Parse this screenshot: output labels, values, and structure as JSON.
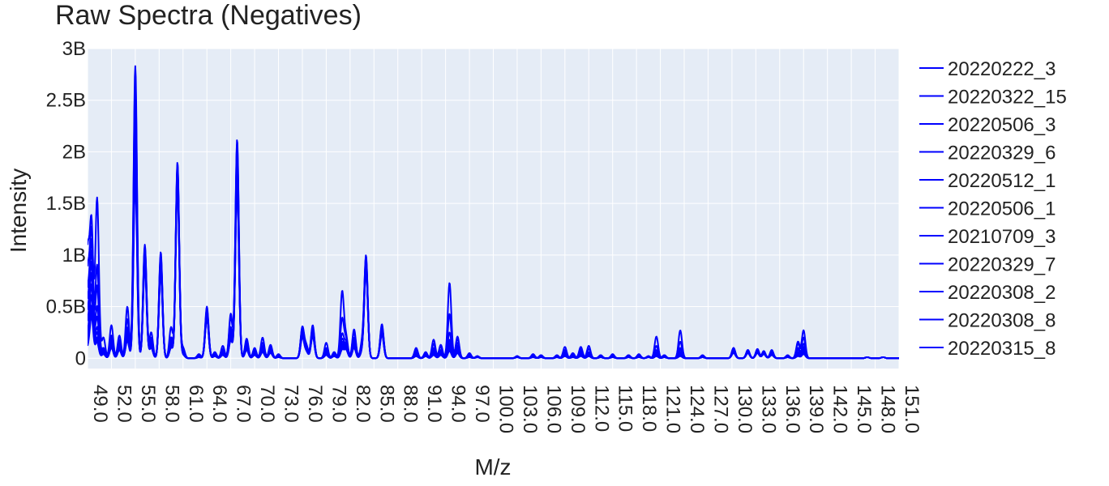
{
  "chart_data": {
    "type": "line",
    "title": "Raw Spectra (Negatives)",
    "xlabel": "M/z",
    "ylabel": "Intensity",
    "xlim": [
      49.0,
      151.0
    ],
    "ylim": [
      -100000000,
      3000000000
    ],
    "x_ticks": [
      "49.0",
      "52.0",
      "55.0",
      "58.0",
      "61.0",
      "64.0",
      "67.0",
      "70.0",
      "73.0",
      "76.0",
      "79.0",
      "82.0",
      "85.0",
      "88.0",
      "91.0",
      "94.0",
      "97.0",
      "100.0",
      "103.0",
      "106.0",
      "109.0",
      "112.0",
      "115.0",
      "118.0",
      "121.0",
      "124.0",
      "127.0",
      "130.0",
      "133.0",
      "136.0",
      "139.0",
      "142.0",
      "145.0",
      "148.0",
      "151.0"
    ],
    "y_ticks": [
      "0",
      "0.5B",
      "1B",
      "1.5B",
      "2B",
      "2.5B",
      "3B"
    ],
    "y_tick_values": [
      0,
      500000000,
      1000000000,
      1500000000,
      2000000000,
      2500000000,
      3000000000
    ],
    "grid": true,
    "legend_position": "right",
    "line_color": "#0000ff",
    "background_color": "#e5ecf6",
    "peaks_mz": [
      49.0,
      49.5,
      50.2,
      51.0,
      52.0,
      53.0,
      54.0,
      55.0,
      56.2,
      57.0,
      58.2,
      59.5,
      60.3,
      61.0,
      63.0,
      64.0,
      65.0,
      66.0,
      67.0,
      67.8,
      69.0,
      70.0,
      71.0,
      72.0,
      73.0,
      76.0,
      76.5,
      77.3,
      79.0,
      80.0,
      81.0,
      81.5,
      82.5,
      83.5,
      84.0,
      86.0,
      90.3,
      91.5,
      92.5,
      93.4,
      94.5,
      95.5,
      97.0,
      98.0,
      103.0,
      105.0,
      106.0,
      108.0,
      109.0,
      110.0,
      111.0,
      112.0,
      113.5,
      115.0,
      117.0,
      118.3,
      119.5,
      120.5,
      121.5,
      123.5,
      126.3,
      130.2,
      132.0,
      133.2,
      134.0,
      135.0,
      137.0,
      138.3,
      139.0,
      147.0,
      149.0
    ],
    "series": [
      {
        "name": "20220222_3",
        "intensities": [
          1000000000,
          1300000000,
          150000000,
          50000000,
          220000000,
          180000000,
          500000000,
          2830000000,
          1100000000,
          200000000,
          1000000000,
          300000000,
          1900000000,
          100000000,
          40000000,
          500000000,
          60000000,
          90000000,
          430000000,
          2120000000,
          190000000,
          100000000,
          200000000,
          130000000,
          40000000,
          300000000,
          120000000,
          320000000,
          100000000,
          60000000,
          640000000,
          200000000,
          250000000,
          120000000,
          990000000,
          300000000,
          100000000,
          60000000,
          180000000,
          130000000,
          730000000,
          210000000,
          50000000,
          20000000,
          20000000,
          40000000,
          30000000,
          30000000,
          110000000,
          50000000,
          110000000,
          90000000,
          30000000,
          40000000,
          30000000,
          40000000,
          20000000,
          210000000,
          30000000,
          270000000,
          30000000,
          100000000,
          80000000,
          90000000,
          70000000,
          80000000,
          30000000,
          160000000,
          270000000,
          10000000,
          10000000
        ]
      },
      {
        "name": "20220322_15",
        "intensities": [
          800000000,
          1200000000,
          1550000000,
          200000000,
          320000000,
          220000000,
          380000000,
          2700000000,
          1080000000,
          250000000,
          1030000000,
          200000000,
          1880000000,
          90000000,
          30000000,
          480000000,
          40000000,
          120000000,
          400000000,
          2080000000,
          170000000,
          80000000,
          150000000,
          110000000,
          30000000,
          290000000,
          110000000,
          300000000,
          150000000,
          50000000,
          380000000,
          180000000,
          280000000,
          140000000,
          970000000,
          330000000,
          80000000,
          50000000,
          140000000,
          110000000,
          430000000,
          190000000,
          40000000,
          20000000,
          20000000,
          30000000,
          30000000,
          20000000,
          80000000,
          40000000,
          90000000,
          120000000,
          30000000,
          30000000,
          30000000,
          30000000,
          20000000,
          120000000,
          30000000,
          160000000,
          20000000,
          100000000,
          80000000,
          80000000,
          60000000,
          70000000,
          20000000,
          140000000,
          200000000,
          10000000,
          10000000
        ]
      },
      {
        "name": "20220506_3",
        "intensities": [
          600000000,
          1100000000,
          900000000,
          100000000,
          200000000,
          160000000,
          300000000,
          2500000000,
          1050000000,
          180000000,
          980000000,
          180000000,
          1850000000,
          80000000,
          30000000,
          460000000,
          40000000,
          80000000,
          300000000,
          2000000000,
          150000000,
          70000000,
          120000000,
          100000000,
          30000000,
          280000000,
          100000000,
          290000000,
          80000000,
          40000000,
          230000000,
          150000000,
          200000000,
          100000000,
          950000000,
          310000000,
          60000000,
          40000000,
          100000000,
          80000000,
          250000000,
          150000000,
          30000000,
          20000000,
          20000000,
          30000000,
          20000000,
          20000000,
          60000000,
          30000000,
          70000000,
          60000000,
          20000000,
          30000000,
          20000000,
          30000000,
          20000000,
          80000000,
          20000000,
          100000000,
          20000000,
          90000000,
          70000000,
          80000000,
          60000000,
          60000000,
          20000000,
          100000000,
          140000000,
          10000000,
          10000000
        ]
      },
      {
        "name": "20220329_6",
        "intensities": [
          500000000,
          1000000000,
          700000000,
          90000000,
          180000000,
          140000000,
          280000000,
          2400000000,
          1020000000,
          160000000,
          960000000,
          160000000,
          1820000000,
          70000000,
          20000000,
          450000000,
          30000000,
          70000000,
          280000000,
          1950000000,
          140000000,
          60000000,
          110000000,
          90000000,
          20000000,
          270000000,
          90000000,
          280000000,
          70000000,
          40000000,
          180000000,
          130000000,
          180000000,
          90000000,
          930000000,
          300000000,
          50000000,
          40000000,
          80000000,
          70000000,
          180000000,
          120000000,
          30000000,
          10000000,
          20000000,
          20000000,
          20000000,
          20000000,
          50000000,
          30000000,
          60000000,
          50000000,
          20000000,
          20000000,
          20000000,
          20000000,
          10000000,
          60000000,
          20000000,
          80000000,
          20000000,
          90000000,
          70000000,
          70000000,
          60000000,
          60000000,
          20000000,
          80000000,
          110000000,
          10000000,
          10000000
        ]
      },
      {
        "name": "20220512_1",
        "intensities": [
          400000000,
          900000000,
          500000000,
          80000000,
          160000000,
          130000000,
          260000000,
          2300000000,
          1000000000,
          150000000,
          940000000,
          150000000,
          1800000000,
          60000000,
          20000000,
          440000000,
          30000000,
          60000000,
          260000000,
          1900000000,
          130000000,
          60000000,
          100000000,
          80000000,
          20000000,
          260000000,
          90000000,
          270000000,
          60000000,
          30000000,
          150000000,
          120000000,
          160000000,
          80000000,
          920000000,
          290000000,
          40000000,
          30000000,
          70000000,
          60000000,
          150000000,
          100000000,
          20000000,
          10000000,
          10000000,
          20000000,
          20000000,
          10000000,
          40000000,
          20000000,
          50000000,
          40000000,
          20000000,
          20000000,
          20000000,
          20000000,
          10000000,
          50000000,
          20000000,
          60000000,
          20000000,
          80000000,
          70000000,
          70000000,
          60000000,
          50000000,
          20000000,
          60000000,
          90000000,
          10000000,
          10000000
        ]
      },
      {
        "name": "20220506_1",
        "intensities": [
          300000000,
          800000000,
          400000000,
          70000000,
          150000000,
          120000000,
          240000000,
          2200000000,
          980000000,
          140000000,
          920000000,
          140000000,
          1780000000,
          60000000,
          20000000,
          430000000,
          30000000,
          60000000,
          240000000,
          1860000000,
          120000000,
          50000000,
          90000000,
          80000000,
          20000000,
          250000000,
          80000000,
          260000000,
          60000000,
          30000000,
          130000000,
          110000000,
          150000000,
          80000000,
          910000000,
          280000000,
          40000000,
          30000000,
          60000000,
          60000000,
          130000000,
          90000000,
          20000000,
          10000000,
          10000000,
          20000000,
          20000000,
          10000000,
          40000000,
          20000000,
          40000000,
          40000000,
          20000000,
          20000000,
          20000000,
          20000000,
          10000000,
          40000000,
          20000000,
          50000000,
          20000000,
          80000000,
          60000000,
          70000000,
          50000000,
          50000000,
          20000000,
          50000000,
          80000000,
          10000000,
          10000000
        ]
      },
      {
        "name": "20210709_3",
        "intensities": [
          200000000,
          700000000,
          300000000,
          60000000,
          140000000,
          110000000,
          220000000,
          2100000000,
          960000000,
          130000000,
          900000000,
          130000000,
          1760000000,
          50000000,
          20000000,
          420000000,
          20000000,
          50000000,
          220000000,
          1820000000,
          110000000,
          50000000,
          80000000,
          70000000,
          20000000,
          240000000,
          80000000,
          250000000,
          50000000,
          30000000,
          120000000,
          100000000,
          140000000,
          70000000,
          900000000,
          270000000,
          30000000,
          30000000,
          50000000,
          50000000,
          110000000,
          80000000,
          20000000,
          10000000,
          10000000,
          20000000,
          10000000,
          10000000,
          30000000,
          20000000,
          40000000,
          30000000,
          10000000,
          20000000,
          10000000,
          20000000,
          10000000,
          40000000,
          10000000,
          40000000,
          10000000,
          70000000,
          60000000,
          60000000,
          50000000,
          50000000,
          20000000,
          40000000,
          70000000,
          10000000,
          10000000
        ]
      },
      {
        "name": "20220329_7",
        "intensities": [
          150000000,
          600000000,
          250000000,
          50000000,
          130000000,
          100000000,
          200000000,
          2000000000,
          940000000,
          120000000,
          880000000,
          120000000,
          1740000000,
          50000000,
          20000000,
          410000000,
          20000000,
          50000000,
          200000000,
          1780000000,
          100000000,
          40000000,
          80000000,
          70000000,
          20000000,
          230000000,
          70000000,
          240000000,
          50000000,
          20000000,
          110000000,
          90000000,
          130000000,
          70000000,
          890000000,
          260000000,
          30000000,
          20000000,
          50000000,
          50000000,
          100000000,
          70000000,
          20000000,
          10000000,
          10000000,
          20000000,
          10000000,
          10000000,
          30000000,
          20000000,
          30000000,
          30000000,
          10000000,
          20000000,
          10000000,
          20000000,
          10000000,
          30000000,
          10000000,
          40000000,
          10000000,
          70000000,
          60000000,
          60000000,
          50000000,
          40000000,
          10000000,
          40000000,
          60000000,
          10000000,
          10000000
        ]
      },
      {
        "name": "20220308_2",
        "intensities": [
          120000000,
          500000000,
          200000000,
          50000000,
          120000000,
          90000000,
          190000000,
          1900000000,
          920000000,
          110000000,
          860000000,
          110000000,
          1720000000,
          40000000,
          10000000,
          400000000,
          20000000,
          40000000,
          190000000,
          1740000000,
          90000000,
          40000000,
          70000000,
          60000000,
          20000000,
          220000000,
          70000000,
          230000000,
          40000000,
          20000000,
          100000000,
          90000000,
          120000000,
          60000000,
          880000000,
          250000000,
          30000000,
          20000000,
          40000000,
          40000000,
          90000000,
          60000000,
          20000000,
          10000000,
          10000000,
          10000000,
          10000000,
          10000000,
          30000000,
          10000000,
          30000000,
          30000000,
          10000000,
          10000000,
          10000000,
          20000000,
          10000000,
          30000000,
          10000000,
          30000000,
          10000000,
          60000000,
          50000000,
          60000000,
          40000000,
          40000000,
          10000000,
          30000000,
          50000000,
          10000000,
          10000000
        ]
      },
      {
        "name": "20220308_8",
        "intensities": [
          100000000,
          450000000,
          180000000,
          40000000,
          110000000,
          80000000,
          180000000,
          1800000000,
          900000000,
          100000000,
          840000000,
          100000000,
          1700000000,
          40000000,
          10000000,
          390000000,
          20000000,
          40000000,
          180000000,
          1700000000,
          80000000,
          30000000,
          60000000,
          60000000,
          10000000,
          210000000,
          60000000,
          220000000,
          40000000,
          20000000,
          90000000,
          80000000,
          110000000,
          60000000,
          870000000,
          240000000,
          20000000,
          20000000,
          40000000,
          40000000,
          80000000,
          50000000,
          10000000,
          10000000,
          10000000,
          10000000,
          10000000,
          10000000,
          20000000,
          10000000,
          30000000,
          20000000,
          10000000,
          10000000,
          10000000,
          10000000,
          10000000,
          20000000,
          10000000,
          30000000,
          10000000,
          60000000,
          50000000,
          50000000,
          40000000,
          40000000,
          10000000,
          30000000,
          50000000,
          10000000,
          10000000
        ]
      },
      {
        "name": "20220315_8",
        "intensities": [
          90000000,
          400000000,
          160000000,
          40000000,
          100000000,
          80000000,
          170000000,
          1700000000,
          880000000,
          100000000,
          820000000,
          100000000,
          1680000000,
          30000000,
          10000000,
          380000000,
          20000000,
          30000000,
          170000000,
          1660000000,
          80000000,
          30000000,
          60000000,
          50000000,
          10000000,
          200000000,
          60000000,
          210000000,
          30000000,
          20000000,
          80000000,
          80000000,
          100000000,
          50000000,
          860000000,
          230000000,
          20000000,
          20000000,
          30000000,
          30000000,
          70000000,
          50000000,
          10000000,
          10000000,
          10000000,
          10000000,
          10000000,
          10000000,
          20000000,
          10000000,
          20000000,
          20000000,
          10000000,
          10000000,
          10000000,
          10000000,
          10000000,
          20000000,
          10000000,
          20000000,
          10000000,
          50000000,
          50000000,
          50000000,
          40000000,
          30000000,
          10000000,
          20000000,
          40000000,
          10000000,
          10000000
        ]
      }
    ]
  }
}
